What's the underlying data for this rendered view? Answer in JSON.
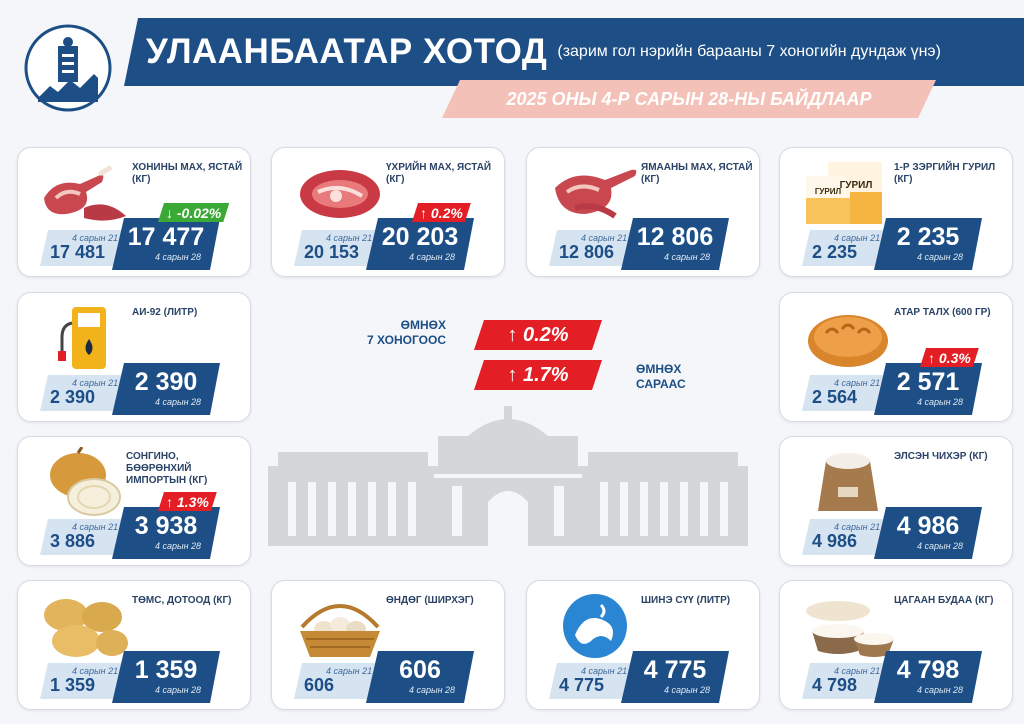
{
  "header": {
    "title": "УЛААНБААТАР ХОТОД",
    "subtitle": "(зарим гол нэрийн барааны 7 хоногийн дундаж үнэ)",
    "date": "2025 ОНЫ 4-Р САРЫН 28-НЫ БАЙДЛААР"
  },
  "summary": {
    "weekly_label_1": "ӨМНӨХ",
    "weekly_label_2": "7 ХОНОГООС",
    "weekly_change": "↑ 0.2%",
    "monthly_label_1": "ӨМНӨХ",
    "monthly_label_2": "САРААС",
    "monthly_change": "↑ 1.7%"
  },
  "items": [
    {
      "name": "ХОНИНЫ МАХ, ЯСТАЙ (КГ)",
      "prev_label": "4 сарын 21",
      "prev": "17 481",
      "cur": "17 477",
      "cur_label": "4 сарын 28",
      "change": "↓ -0.02%",
      "dir": "down",
      "icon": "mutton-icon"
    },
    {
      "name": "ҮХРИЙН МАХ, ЯСТАЙ (КГ)",
      "prev_label": "4 сарын 21",
      "prev": "20 153",
      "cur": "20 203",
      "cur_label": "4 сарын 28",
      "change": "↑ 0.2%",
      "dir": "up",
      "icon": "beef-icon"
    },
    {
      "name": "ЯМААНЫ МАХ, ЯСТАЙ (КГ)",
      "prev_label": "4 сарын 21",
      "prev": "12 806",
      "cur": "12 806",
      "cur_label": "4 сарын 28",
      "change": "",
      "dir": "",
      "icon": "goat-meat-icon"
    },
    {
      "name": "1-Р ЗЭРГИЙН ГУРИЛ (КГ)",
      "prev_label": "4 сарын 21",
      "prev": "2 235",
      "cur": "2 235",
      "cur_label": "4 сарын 28",
      "change": "",
      "dir": "",
      "icon": "flour-icon",
      "pack_text": "ГУРИЛ"
    },
    {
      "name": "АИ-92 (ЛИТР)",
      "prev_label": "4 сарын 21",
      "prev": "2 390",
      "cur": "2 390",
      "cur_label": "4 сарын 28",
      "change": "",
      "dir": "",
      "icon": "fuel-pump-icon"
    },
    {
      "name": "АТАР ТАЛХ (600 ГР)",
      "prev_label": "4 сарын 21",
      "prev": "2 564",
      "cur": "2 571",
      "cur_label": "4 сарын 28",
      "change": "↑ 0.3%",
      "dir": "up",
      "icon": "bread-icon"
    },
    {
      "name": "СОНГИНО, БӨӨРӨНХИЙ ИМПОРТЫН (КГ)",
      "prev_label": "4 сарын 21",
      "prev": "3 886",
      "cur": "3 938",
      "cur_label": "4 сарын 28",
      "change": "↑ 1.3%",
      "dir": "up",
      "icon": "onion-icon"
    },
    {
      "name": "ЭЛСЭН ЧИХЭР (КГ)",
      "prev_label": "4 сарын 21",
      "prev": "4 986",
      "cur": "4 986",
      "cur_label": "4 сарын 28",
      "change": "",
      "dir": "",
      "icon": "sugar-sack-icon"
    },
    {
      "name": "ТӨМС, ДОТООД (КГ)",
      "prev_label": "4 сарын 21",
      "prev": "1 359",
      "cur": "1 359",
      "cur_label": "4 сарын 28",
      "change": "",
      "dir": "",
      "icon": "potato-icon"
    },
    {
      "name": "ӨНДӨГ (ШИРХЭГ)",
      "prev_label": "4 сарын 21",
      "prev": "606",
      "cur": "606",
      "cur_label": "4 сарын 28",
      "change": "",
      "dir": "",
      "icon": "egg-basket-icon"
    },
    {
      "name": "ШИНЭ СҮҮ (ЛИТР)",
      "prev_label": "4 сарын 21",
      "prev": "4 775",
      "cur": "4 775",
      "cur_label": "4 сарын 28",
      "change": "",
      "dir": "",
      "icon": "milk-icon"
    },
    {
      "name": "ЦАГААН БУДАА (КГ)",
      "prev_label": "4 сарын 21",
      "prev": "4 798",
      "cur": "4 798",
      "cur_label": "4 сарын 28",
      "change": "",
      "dir": "",
      "icon": "rice-icon"
    }
  ]
}
